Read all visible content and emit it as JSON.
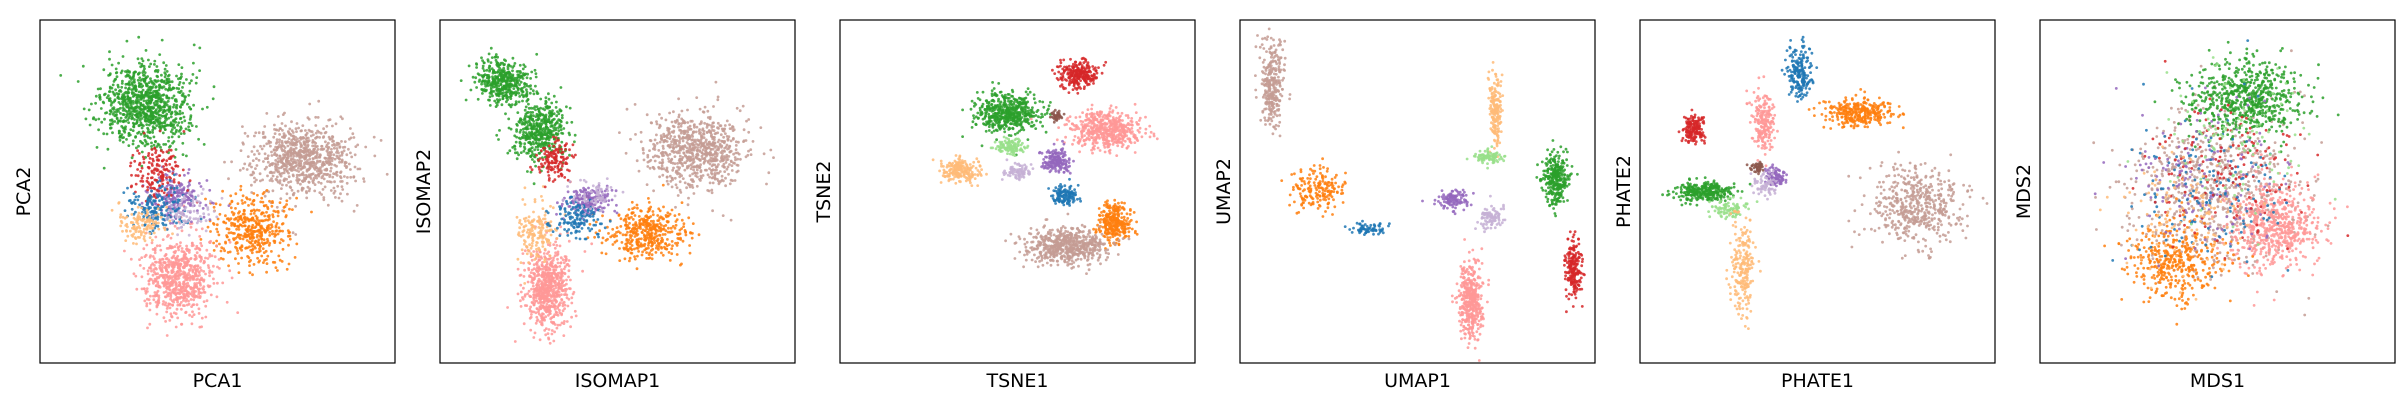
{
  "figure": {
    "background": "#ffffff",
    "point_alpha": 0.85
  },
  "palette": {
    "blue": "#1f77b4",
    "orange": "#ff7f0e",
    "green": "#2ca02c",
    "red": "#d62728",
    "purple": "#9467bd",
    "brown": "#8c564b",
    "pink": "#ff9896",
    "light_orange": "#ffbb78",
    "light_green": "#98df8a",
    "lavender": "#c5b0d5",
    "tan": "#c49c94"
  },
  "chart_data": [
    {
      "type": "scatter",
      "title": "",
      "xlabel": "PCA1",
      "ylabel": "PCA2",
      "xticks": [],
      "yticks": [],
      "grid": false,
      "legend": "none",
      "xlim": [
        0,
        10
      ],
      "ylim": [
        0,
        10
      ],
      "clusters": [
        {
          "color": "#2ca02c",
          "center": [
            3.0,
            7.5
          ],
          "spread": [
            1.1,
            1.1
          ],
          "n": 950
        },
        {
          "color": "#c49c94",
          "center": [
            7.4,
            6.0
          ],
          "spread": [
            1.3,
            1.0
          ],
          "n": 800
        },
        {
          "color": "#ff7f0e",
          "center": [
            6.0,
            3.9
          ],
          "spread": [
            0.9,
            0.9
          ],
          "n": 420
        },
        {
          "color": "#ff9896",
          "center": [
            3.9,
            2.5
          ],
          "spread": [
            0.9,
            1.0
          ],
          "n": 700
        },
        {
          "color": "#9467bd",
          "center": [
            3.8,
            4.8
          ],
          "spread": [
            0.7,
            0.6
          ],
          "n": 200
        },
        {
          "color": "#d62728",
          "center": [
            3.3,
            5.5
          ],
          "spread": [
            0.6,
            0.8
          ],
          "n": 160
        },
        {
          "color": "#1f77b4",
          "center": [
            3.4,
            4.5
          ],
          "spread": [
            0.8,
            0.6
          ],
          "n": 160
        },
        {
          "color": "#ffbb78",
          "center": [
            2.8,
            4.1
          ],
          "spread": [
            0.6,
            0.5
          ],
          "n": 120
        },
        {
          "color": "#c5b0d5",
          "center": [
            4.2,
            4.4
          ],
          "spread": [
            0.6,
            0.5
          ],
          "n": 80
        }
      ]
    },
    {
      "type": "scatter",
      "title": "",
      "xlabel": "ISOMAP1",
      "ylabel": "ISOMAP2",
      "xticks": [],
      "yticks": [],
      "grid": false,
      "legend": "none",
      "xlim": [
        0,
        10
      ],
      "ylim": [
        0,
        10
      ],
      "clusters": [
        {
          "color": "#2ca02c",
          "center": [
            1.8,
            8.2
          ],
          "spread": [
            0.7,
            0.6
          ],
          "n": 420
        },
        {
          "color": "#2ca02c",
          "center": [
            2.8,
            6.8
          ],
          "spread": [
            0.7,
            0.8
          ],
          "n": 480
        },
        {
          "color": "#c49c94",
          "center": [
            7.2,
            6.2
          ],
          "spread": [
            1.3,
            1.0
          ],
          "n": 750
        },
        {
          "color": "#ff7f0e",
          "center": [
            5.8,
            3.8
          ],
          "spread": [
            1.0,
            0.7
          ],
          "n": 420
        },
        {
          "color": "#ff9896",
          "center": [
            3.0,
            2.2
          ],
          "spread": [
            0.6,
            1.1
          ],
          "n": 650
        },
        {
          "color": "#ffbb78",
          "center": [
            2.7,
            3.8
          ],
          "spread": [
            0.5,
            0.8
          ],
          "n": 160
        },
        {
          "color": "#d62728",
          "center": [
            3.2,
            5.9
          ],
          "spread": [
            0.4,
            0.5
          ],
          "n": 130
        },
        {
          "color": "#9467bd",
          "center": [
            4.2,
            4.7
          ],
          "spread": [
            0.6,
            0.4
          ],
          "n": 180
        },
        {
          "color": "#1f77b4",
          "center": [
            3.9,
            4.2
          ],
          "spread": [
            0.6,
            0.5
          ],
          "n": 140
        },
        {
          "color": "#c5b0d5",
          "center": [
            4.3,
            4.9
          ],
          "spread": [
            0.5,
            0.4
          ],
          "n": 60
        }
      ]
    },
    {
      "type": "scatter",
      "title": "",
      "xlabel": "TSNE1",
      "ylabel": "TSNE2",
      "xticks": [],
      "yticks": [],
      "grid": false,
      "legend": "none",
      "xlim": [
        0,
        10
      ],
      "ylim": [
        0,
        10
      ],
      "clusters": [
        {
          "color": "#2ca02c",
          "center": [
            4.7,
            7.3
          ],
          "spread": [
            0.8,
            0.5
          ],
          "n": 520
        },
        {
          "color": "#ff9896",
          "center": [
            7.5,
            6.8
          ],
          "spread": [
            0.9,
            0.5
          ],
          "n": 520
        },
        {
          "color": "#d62728",
          "center": [
            6.7,
            8.4
          ],
          "spread": [
            0.5,
            0.35
          ],
          "n": 260
        },
        {
          "color": "#ffbb78",
          "center": [
            3.4,
            5.6
          ],
          "spread": [
            0.5,
            0.3
          ],
          "n": 200
        },
        {
          "color": "#98df8a",
          "center": [
            4.8,
            6.3
          ],
          "spread": [
            0.4,
            0.2
          ],
          "n": 120
        },
        {
          "color": "#9467bd",
          "center": [
            6.1,
            5.9
          ],
          "spread": [
            0.35,
            0.3
          ],
          "n": 180
        },
        {
          "color": "#c5b0d5",
          "center": [
            5.0,
            5.6
          ],
          "spread": [
            0.3,
            0.25
          ],
          "n": 80
        },
        {
          "color": "#1f77b4",
          "center": [
            6.3,
            4.9
          ],
          "spread": [
            0.35,
            0.25
          ],
          "n": 130
        },
        {
          "color": "#ff7f0e",
          "center": [
            7.7,
            4.1
          ],
          "spread": [
            0.45,
            0.5
          ],
          "n": 300
        },
        {
          "color": "#c49c94",
          "center": [
            6.4,
            3.4
          ],
          "spread": [
            1.0,
            0.45
          ],
          "n": 600
        },
        {
          "color": "#8c564b",
          "center": [
            6.1,
            7.2
          ],
          "spread": [
            0.15,
            0.15
          ],
          "n": 40
        }
      ]
    },
    {
      "type": "scatter",
      "title": "",
      "xlabel": "UMAP1",
      "ylabel": "UMAP2",
      "xticks": [],
      "yticks": [],
      "grid": false,
      "legend": "none",
      "xlim": [
        0,
        10
      ],
      "ylim": [
        0,
        10
      ],
      "clusters": [
        {
          "color": "#c49c94",
          "center": [
            0.9,
            8.2
          ],
          "spread": [
            0.3,
            1.2
          ],
          "n": 300
        },
        {
          "color": "#ff7f0e",
          "center": [
            2.2,
            5.1
          ],
          "spread": [
            0.7,
            0.6
          ],
          "n": 180
        },
        {
          "color": "#1f77b4",
          "center": [
            3.6,
            3.9
          ],
          "spread": [
            0.4,
            0.15
          ],
          "n": 70
        },
        {
          "color": "#ffbb78",
          "center": [
            7.2,
            7.4
          ],
          "spread": [
            0.15,
            1.0
          ],
          "n": 180
        },
        {
          "color": "#98df8a",
          "center": [
            7.0,
            6.0
          ],
          "spread": [
            0.4,
            0.15
          ],
          "n": 90
        },
        {
          "color": "#2ca02c",
          "center": [
            8.9,
            5.4
          ],
          "spread": [
            0.35,
            0.7
          ],
          "n": 320
        },
        {
          "color": "#d62728",
          "center": [
            9.4,
            2.7
          ],
          "spread": [
            0.2,
            0.8
          ],
          "n": 200
        },
        {
          "color": "#9467bd",
          "center": [
            6.0,
            4.8
          ],
          "spread": [
            0.4,
            0.25
          ],
          "n": 110
        },
        {
          "color": "#c5b0d5",
          "center": [
            7.1,
            4.2
          ],
          "spread": [
            0.3,
            0.3
          ],
          "n": 90
        },
        {
          "color": "#ff9896",
          "center": [
            6.5,
            1.8
          ],
          "spread": [
            0.3,
            1.0
          ],
          "n": 420
        }
      ]
    },
    {
      "type": "scatter",
      "title": "",
      "xlabel": "PHATE1",
      "ylabel": "PHATE2",
      "xticks": [],
      "yticks": [],
      "grid": false,
      "legend": "none",
      "xlim": [
        0,
        10
      ],
      "ylim": [
        0,
        10
      ],
      "clusters": [
        {
          "color": "#1f77b4",
          "center": [
            4.5,
            8.5
          ],
          "spread": [
            0.3,
            0.7
          ],
          "n": 200
        },
        {
          "color": "#ff7f0e",
          "center": [
            6.2,
            7.3
          ],
          "spread": [
            0.9,
            0.4
          ],
          "n": 320
        },
        {
          "color": "#c49c94",
          "center": [
            7.8,
            4.6
          ],
          "spread": [
            1.2,
            1.0
          ],
          "n": 500
        },
        {
          "color": "#d62728",
          "center": [
            1.5,
            6.8
          ],
          "spread": [
            0.3,
            0.4
          ],
          "n": 160
        },
        {
          "color": "#2ca02c",
          "center": [
            1.8,
            5.0
          ],
          "spread": [
            0.8,
            0.25
          ],
          "n": 300
        },
        {
          "color": "#98df8a",
          "center": [
            2.5,
            4.5
          ],
          "spread": [
            0.5,
            0.3
          ],
          "n": 90
        },
        {
          "color": "#ffbb78",
          "center": [
            2.9,
            2.8
          ],
          "spread": [
            0.3,
            1.3
          ],
          "n": 220
        },
        {
          "color": "#ff9896",
          "center": [
            3.5,
            7.1
          ],
          "spread": [
            0.3,
            0.8
          ],
          "n": 200
        },
        {
          "color": "#9467bd",
          "center": [
            3.8,
            5.4
          ],
          "spread": [
            0.3,
            0.25
          ],
          "n": 100
        },
        {
          "color": "#c5b0d5",
          "center": [
            3.5,
            5.2
          ],
          "spread": [
            0.3,
            0.3
          ],
          "n": 70
        },
        {
          "color": "#8c564b",
          "center": [
            3.3,
            5.7
          ],
          "spread": [
            0.2,
            0.15
          ],
          "n": 40
        }
      ]
    },
    {
      "type": "scatter",
      "title": "",
      "xlabel": "MDS1",
      "ylabel": "MDS2",
      "xticks": [],
      "yticks": [],
      "grid": false,
      "legend": "none",
      "xlim": [
        0,
        10
      ],
      "ylim": [
        0,
        10
      ],
      "clusters": [
        {
          "color": "#c49c94",
          "center": [
            5.0,
            5.0
          ],
          "spread": [
            2.2,
            2.0
          ],
          "n": 700
        },
        {
          "color": "#2ca02c",
          "center": [
            5.8,
            7.7
          ],
          "spread": [
            1.4,
            1.0
          ],
          "n": 650
        },
        {
          "color": "#ff9896",
          "center": [
            6.6,
            4.0
          ],
          "spread": [
            1.2,
            1.2
          ],
          "n": 600
        },
        {
          "color": "#ff7f0e",
          "center": [
            3.8,
            3.0
          ],
          "spread": [
            1.2,
            1.1
          ],
          "n": 400
        },
        {
          "color": "#9467bd",
          "center": [
            4.5,
            5.5
          ],
          "spread": [
            2.0,
            2.0
          ],
          "n": 150
        },
        {
          "color": "#1f77b4",
          "center": [
            4.8,
            5.2
          ],
          "spread": [
            2.0,
            2.0
          ],
          "n": 150
        },
        {
          "color": "#d62728",
          "center": [
            5.2,
            5.8
          ],
          "spread": [
            2.0,
            2.0
          ],
          "n": 150
        },
        {
          "color": "#ffbb78",
          "center": [
            4.2,
            4.2
          ],
          "spread": [
            1.8,
            1.8
          ],
          "n": 120
        },
        {
          "color": "#98df8a",
          "center": [
            5.5,
            6.5
          ],
          "spread": [
            1.8,
            1.8
          ],
          "n": 100
        }
      ]
    }
  ]
}
